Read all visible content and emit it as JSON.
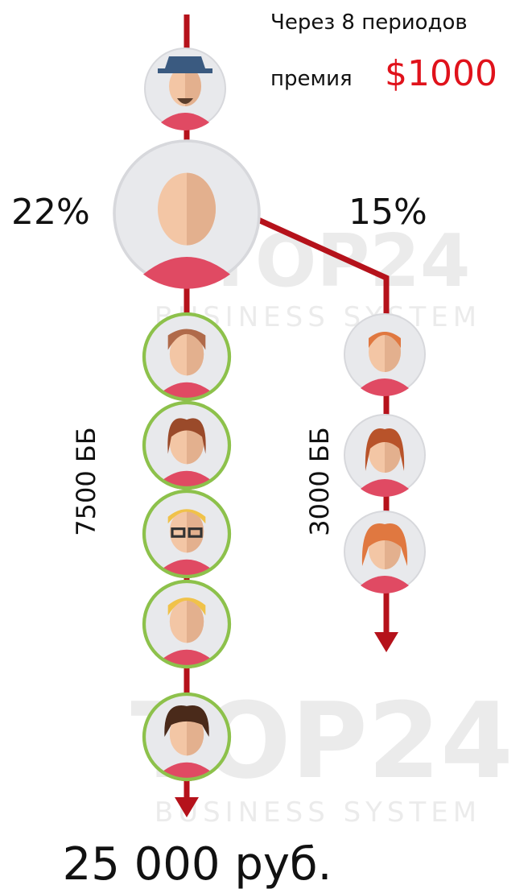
{
  "header": {
    "line1": "Через 8 периодов",
    "line2": "премия",
    "bonus": "$1000"
  },
  "branches": {
    "left_percent": "22%",
    "right_percent": "15%",
    "left_points": "7500 ББ",
    "right_points": "3000 ББ"
  },
  "result": "25 000 руб.",
  "watermark": {
    "brand": "TOP24",
    "tagline": "BUSINESS SYSTEM"
  }
}
